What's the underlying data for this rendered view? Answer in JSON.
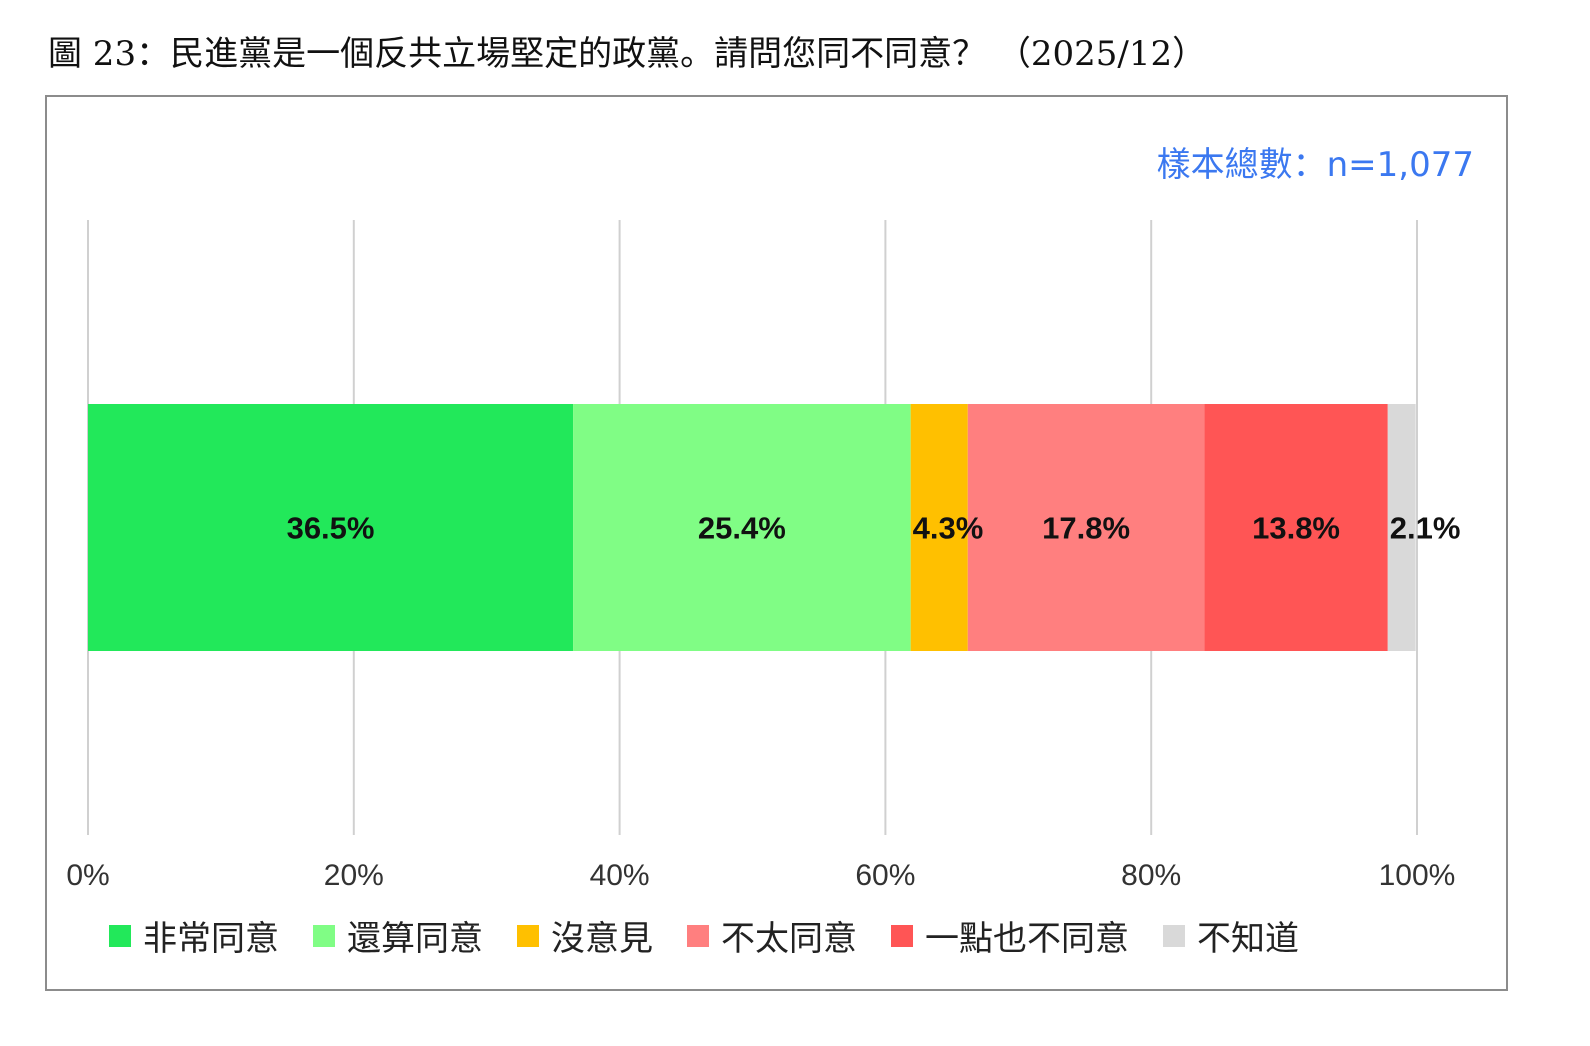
{
  "title": "圖 23：民進黨是一個反共立場堅定的政黨。請問您同不同意？ （2025/12）",
  "sample_note": "樣本總數：n=1,077",
  "chart_data": {
    "type": "bar",
    "orientation": "horizontal",
    "stacked": true,
    "xlim": [
      0,
      100
    ],
    "ticks": [
      "0%",
      "20%",
      "40%",
      "60%",
      "80%",
      "100%"
    ],
    "tick_values": [
      0,
      20,
      40,
      60,
      80,
      100
    ],
    "grid": true,
    "legend_position": "bottom",
    "series": [
      {
        "name": "非常同意",
        "value": 36.5,
        "label": "36.5%",
        "color": "#22e85a"
      },
      {
        "name": "還算同意",
        "value": 25.4,
        "label": "25.4%",
        "color": "#80fd85"
      },
      {
        "name": "沒意見",
        "value": 4.3,
        "label": "4.3%",
        "color": "#ffc000"
      },
      {
        "name": "不太同意",
        "value": 17.8,
        "label": "17.8%",
        "color": "#ff7f7f"
      },
      {
        "name": "一點也不同意",
        "value": 13.8,
        "label": "13.8%",
        "color": "#ff5555"
      },
      {
        "name": "不知道",
        "value": 2.1,
        "label": "2.1%",
        "color": "#d9d9d9"
      }
    ]
  }
}
